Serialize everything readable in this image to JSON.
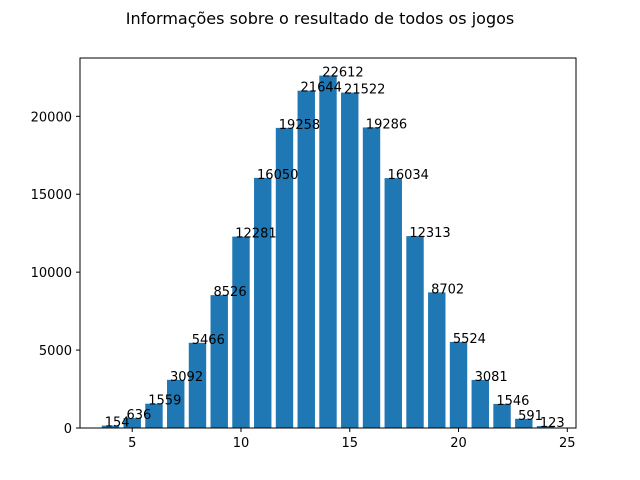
{
  "chart_data": {
    "type": "bar",
    "title": "Informações sobre o resultado de todos os jogos",
    "xlabel": "",
    "ylabel": "",
    "x": [
      4,
      5,
      6,
      7,
      8,
      9,
      10,
      11,
      12,
      13,
      14,
      15,
      16,
      17,
      18,
      19,
      20,
      21,
      22,
      23,
      24
    ],
    "values": [
      154,
      636,
      1559,
      3092,
      5466,
      8526,
      12281,
      16050,
      19258,
      21644,
      22612,
      21522,
      19286,
      16034,
      12313,
      8702,
      5524,
      3081,
      1546,
      591,
      123
    ],
    "data_labels": [
      "154",
      "636",
      "1559",
      "3092",
      "5466",
      "8526",
      "12281",
      "16050",
      "19258",
      "21644",
      "22612",
      "21522",
      "19286",
      "16034",
      "12313",
      "8702",
      "5524",
      "3081",
      "1546",
      "591",
      "123"
    ],
    "xlim": [
      2.6,
      25.4
    ],
    "ylim": [
      0,
      23742
    ],
    "x_ticks": [
      5,
      10,
      15,
      20,
      25
    ],
    "x_tick_labels": [
      "5",
      "10",
      "15",
      "20",
      "25"
    ],
    "y_ticks": [
      0,
      5000,
      10000,
      15000,
      20000
    ],
    "y_tick_labels": [
      "0",
      "5000",
      "10000",
      "15000",
      "20000"
    ],
    "bar_color": "#1f77b4",
    "grid": false,
    "legend": false
  }
}
